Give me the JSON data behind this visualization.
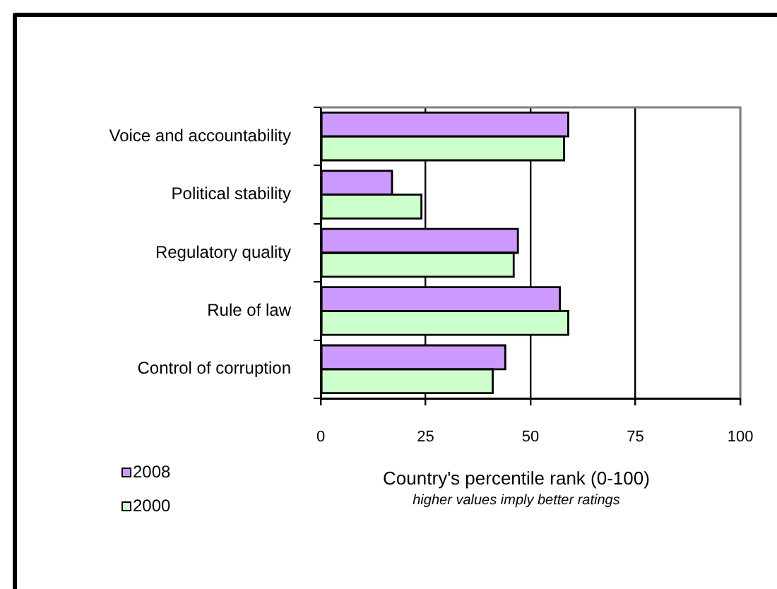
{
  "chart_data": {
    "type": "bar",
    "orientation": "horizontal",
    "categories": [
      "Voice and accountability",
      "Political stability",
      "Regulatory quality",
      "Rule of law",
      "Control of corruption"
    ],
    "series": [
      {
        "name": "2008",
        "color": "#cc99ff",
        "values": [
          59,
          17,
          47,
          57,
          44
        ]
      },
      {
        "name": "2000",
        "color": "#ccffcc",
        "values": [
          58,
          24,
          46,
          59,
          41
        ]
      }
    ],
    "xlabel": "Country's percentile rank (0-100)",
    "annotations": [
      "higher values imply better ratings"
    ],
    "xlim": [
      0,
      100
    ],
    "xticks": [
      0,
      25,
      50,
      75,
      100
    ],
    "grid": "x",
    "legend": "bottom left"
  }
}
